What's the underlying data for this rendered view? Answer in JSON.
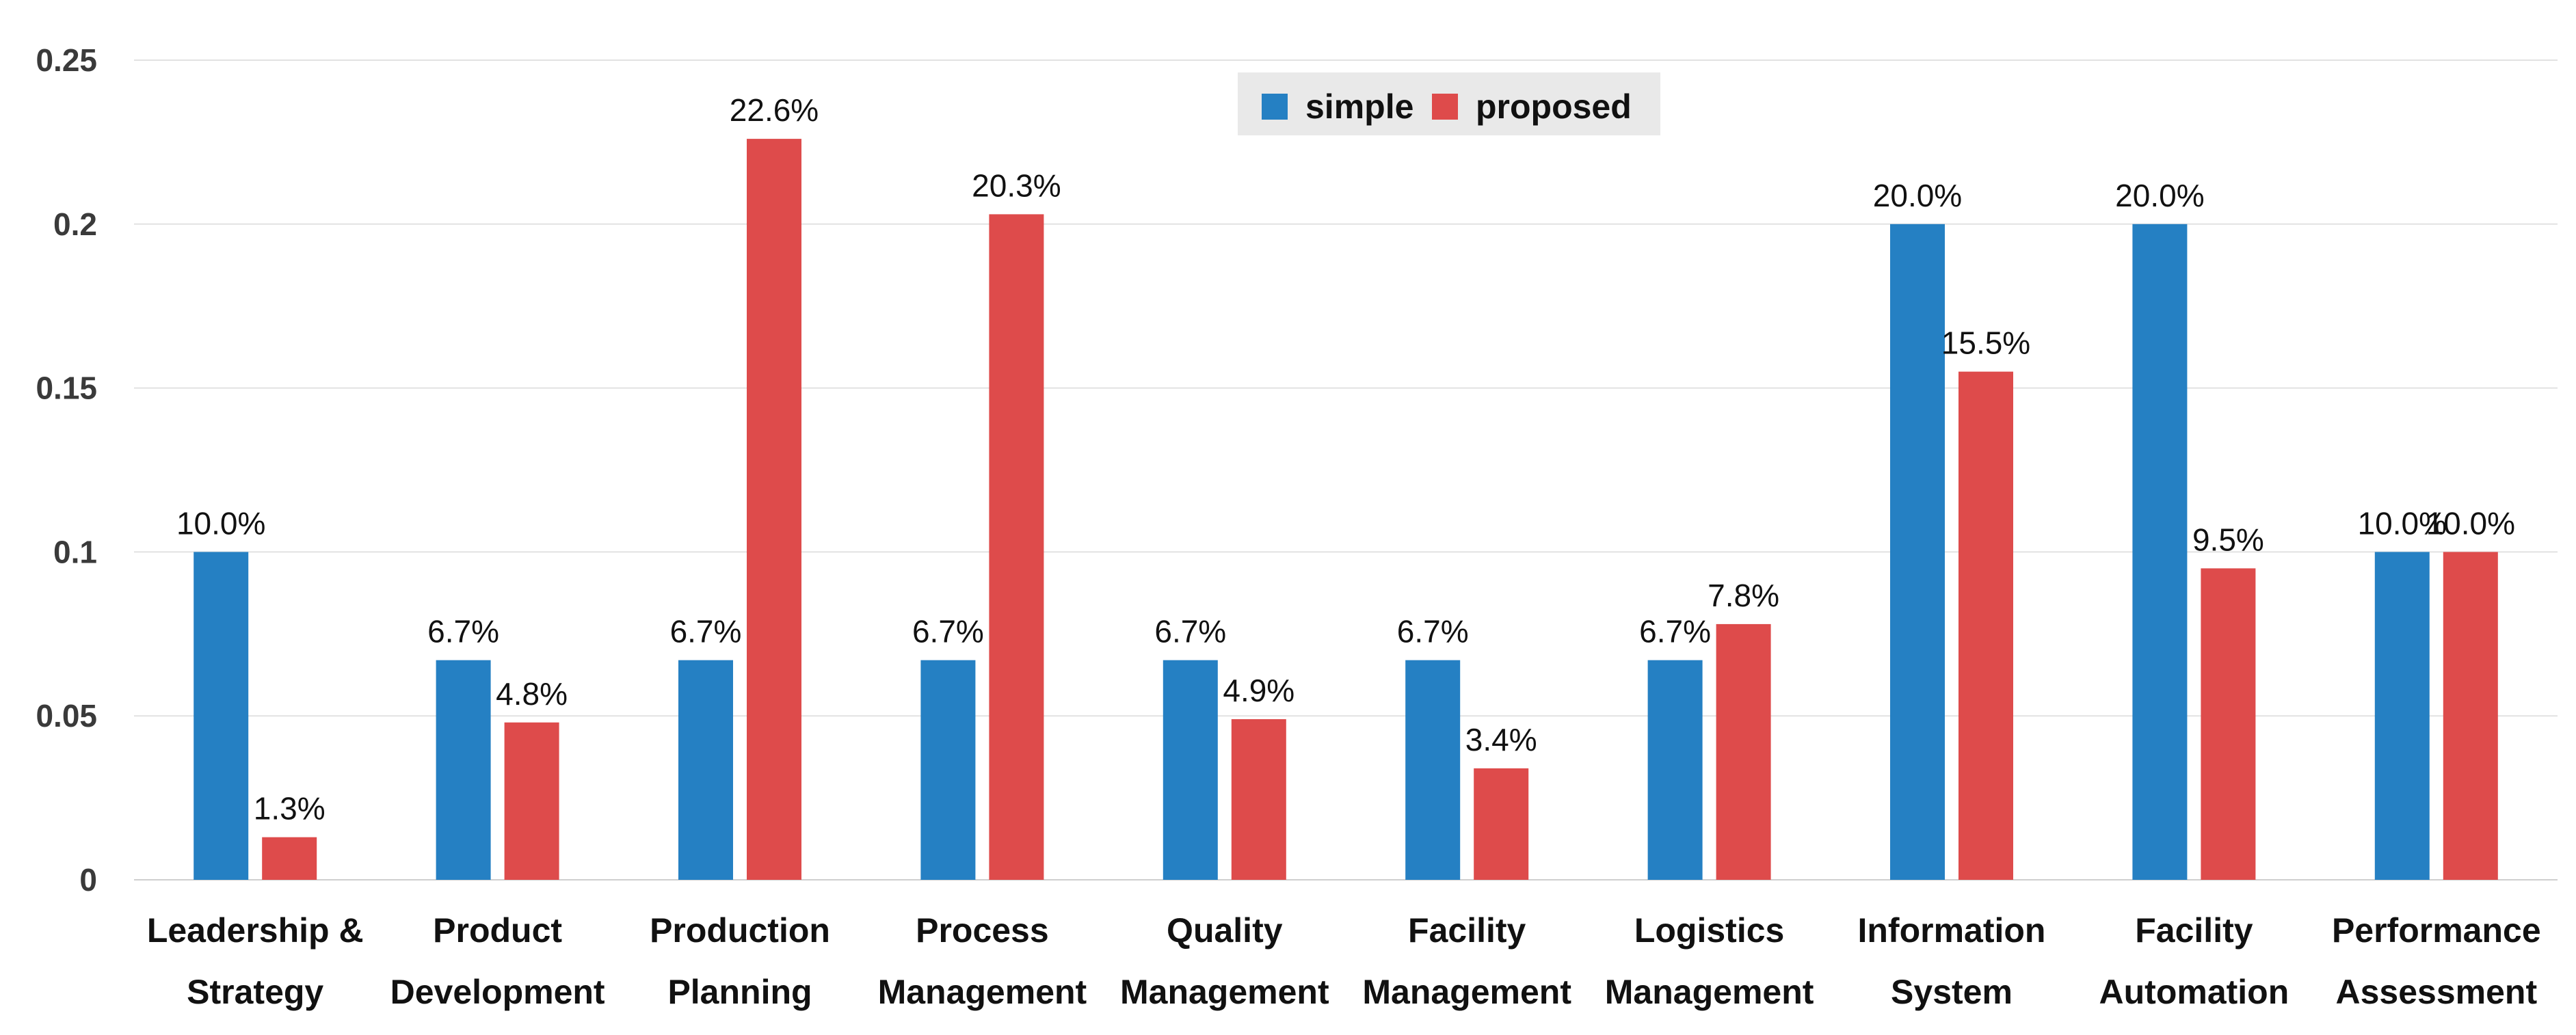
{
  "chart_data": {
    "type": "bar",
    "title": "",
    "xlabel": "",
    "ylabel": "",
    "ylim": [
      0,
      0.25
    ],
    "yticks": [
      0,
      0.05,
      0.1,
      0.15,
      0.2,
      0.25
    ],
    "ytick_labels": [
      "0",
      "0.05",
      "0.1",
      "0.15",
      "0.2",
      "0.25"
    ],
    "grid": true,
    "legend_position": "top-center",
    "categories": [
      [
        "Leadership &",
        "Strategy"
      ],
      [
        "Product",
        "Development"
      ],
      [
        "Production",
        "Planning"
      ],
      [
        "Process",
        "Management"
      ],
      [
        "Quality",
        "Management"
      ],
      [
        "Facility",
        "Management"
      ],
      [
        "Logistics",
        "Management"
      ],
      [
        "Information",
        "System"
      ],
      [
        "Facility",
        "Automation"
      ],
      [
        "Performance",
        "Assessment"
      ]
    ],
    "series": [
      {
        "name": "simple",
        "color": "#2580c3",
        "values": [
          0.1,
          0.067,
          0.067,
          0.067,
          0.067,
          0.067,
          0.067,
          0.2,
          0.2,
          0.1
        ],
        "labels": [
          "10.0%",
          "6.7%",
          "6.7%",
          "6.7%",
          "6.7%",
          "6.7%",
          "6.7%",
          "20.0%",
          "20.0%",
          "10.0%"
        ]
      },
      {
        "name": "proposed",
        "color": "#de4b4b",
        "values": [
          0.013,
          0.048,
          0.226,
          0.203,
          0.049,
          0.034,
          0.078,
          0.155,
          0.095,
          0.1
        ],
        "labels": [
          "1.3%",
          "4.8%",
          "22.6%",
          "20.3%",
          "4.9%",
          "3.4%",
          "7.8%",
          "15.5%",
          "9.5%",
          "10.0%"
        ]
      }
    ]
  }
}
